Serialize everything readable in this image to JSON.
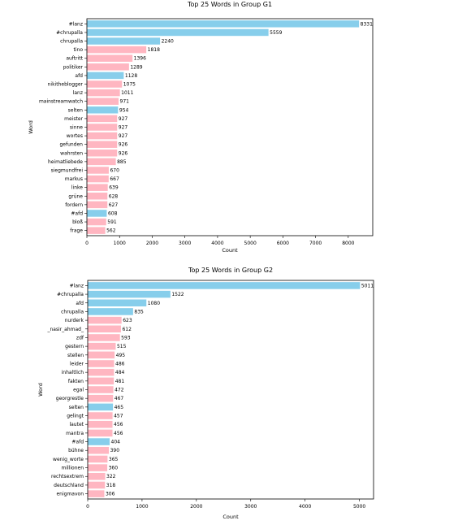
{
  "colors": {
    "highlight": "#87CEEB",
    "other": "#FFB6C1"
  },
  "chart_data": [
    {
      "type": "bar",
      "orientation": "horizontal",
      "title": "Top 25 Words in Group G1",
      "xlabel": "Count",
      "ylabel": "Word",
      "xlim": [
        0,
        8750
      ],
      "xticks": [
        0,
        1000,
        2000,
        3000,
        4000,
        5000,
        6000,
        7000,
        8000
      ],
      "categories": [
        "#lanz",
        "#chrupalla",
        "chrupalla",
        "tino",
        "auftritt",
        "politiker",
        "afd",
        "nikitheblogger",
        "lanz",
        "mainstreamwatch",
        "selten",
        "meister",
        "sinne",
        "wortes",
        "gefunden",
        "wahrsten",
        "heimatliebede",
        "siegmundfrei",
        "markus",
        "linke",
        "grüne",
        "fordern",
        "#afd",
        "bloß",
        "frage"
      ],
      "values": [
        8331,
        5559,
        2240,
        1818,
        1396,
        1289,
        1128,
        1075,
        1011,
        971,
        954,
        927,
        927,
        927,
        926,
        926,
        885,
        670,
        667,
        639,
        628,
        627,
        608,
        591,
        562
      ],
      "highlight": [
        true,
        true,
        true,
        false,
        false,
        false,
        true,
        false,
        false,
        false,
        true,
        false,
        false,
        false,
        false,
        false,
        false,
        false,
        false,
        false,
        false,
        false,
        true,
        false,
        false
      ],
      "grid": false
    },
    {
      "type": "bar",
      "orientation": "horizontal",
      "title": "Top 25 Words in Group G2",
      "xlabel": "Count",
      "ylabel": "Word",
      "xlim": [
        0,
        5260
      ],
      "xticks": [
        0,
        1000,
        2000,
        3000,
        4000,
        5000
      ],
      "categories": [
        "#lanz",
        "#chrupalla",
        "afd",
        "chrupalla",
        "nurderk",
        "_nasir_ahmad_",
        "zdf",
        "gestern",
        "stellen",
        "leider",
        "inhaltlich",
        "fakten",
        "egal",
        "georgrestle",
        "selten",
        "gelingt",
        "lautet",
        "mantra",
        "#afd",
        "bühne",
        "wenig_worte",
        "millionen",
        "rechtsextrem",
        "deutschland",
        "enigmavon"
      ],
      "values": [
        5011,
        1522,
        1080,
        835,
        623,
        612,
        593,
        515,
        495,
        486,
        484,
        481,
        472,
        467,
        465,
        457,
        456,
        456,
        404,
        390,
        365,
        360,
        322,
        318,
        306
      ],
      "highlight": [
        true,
        true,
        true,
        true,
        false,
        false,
        false,
        false,
        false,
        false,
        false,
        false,
        false,
        false,
        true,
        false,
        false,
        false,
        true,
        false,
        false,
        false,
        false,
        false,
        false
      ],
      "grid": false
    }
  ]
}
